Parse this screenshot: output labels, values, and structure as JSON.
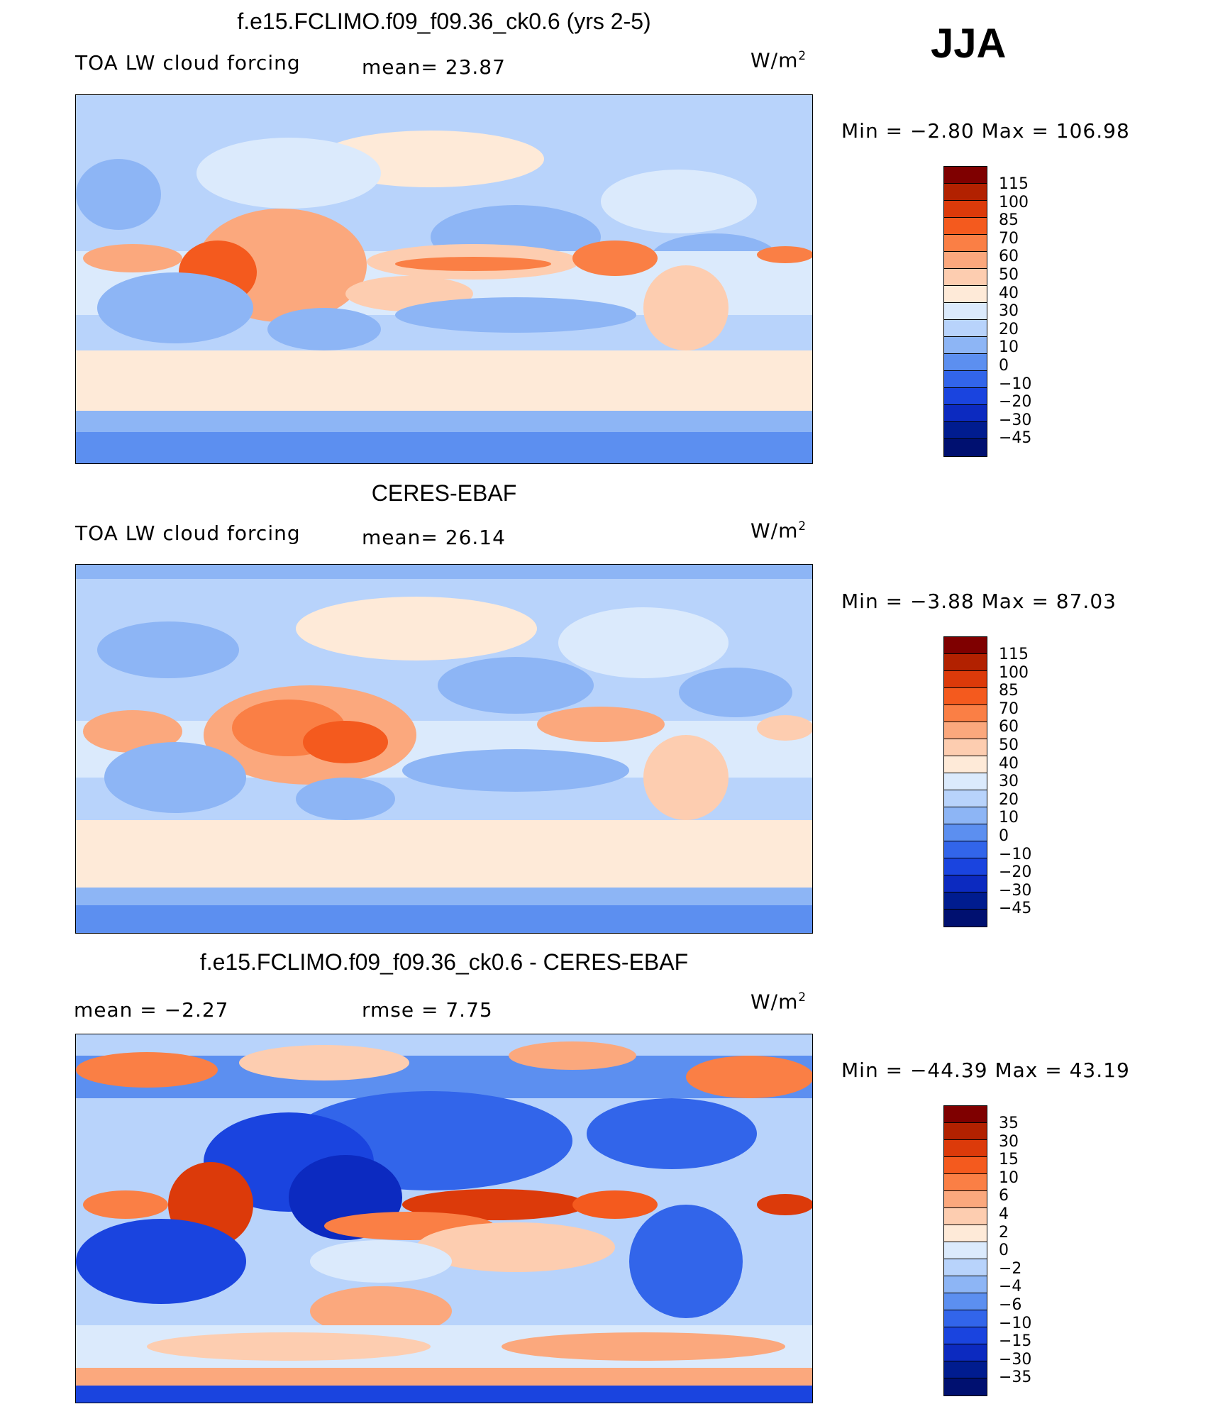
{
  "season": "JJA",
  "units": "W/m",
  "units_sup": "2",
  "panels": [
    {
      "title": "f.e15.FCLIMO.f09_f09.36_ck0.6 (yrs 2-5)",
      "left_label": "TOA LW cloud forcing",
      "mid_label": "mean=   23.87",
      "minmax": "Min  =    −2.80  Max  =  106.98",
      "colorbar": {
        "colors": [
          "#7f0000",
          "#b22100",
          "#dc3a0a",
          "#f45a1e",
          "#fa7f45",
          "#fba87d",
          "#fdcdb0",
          "#feead8",
          "#dbeafc",
          "#b8d3fb",
          "#8db5f5",
          "#5c8ff0",
          "#3265ea",
          "#1a44df",
          "#0c2ac0",
          "#001c8f",
          "#001070"
        ],
        "ticks": [
          "115",
          "100",
          "85",
          "70",
          "60",
          "50",
          "40",
          "30",
          "20",
          "10",
          "0",
          "−10",
          "−20",
          "−30",
          "−45"
        ]
      }
    },
    {
      "title": "CERES-EBAF",
      "left_label": "TOA LW cloud forcing",
      "mid_label": "mean=   26.14",
      "minmax": "Min  =    −3.88  Max  =    87.03",
      "colorbar": {
        "colors": [
          "#7f0000",
          "#b22100",
          "#dc3a0a",
          "#f45a1e",
          "#fa7f45",
          "#fba87d",
          "#fdcdb0",
          "#feead8",
          "#dbeafc",
          "#b8d3fb",
          "#8db5f5",
          "#5c8ff0",
          "#3265ea",
          "#1a44df",
          "#0c2ac0",
          "#001c8f",
          "#001070"
        ],
        "ticks": [
          "115",
          "100",
          "85",
          "70",
          "60",
          "50",
          "40",
          "30",
          "20",
          "10",
          "0",
          "−10",
          "−20",
          "−30",
          "−45"
        ]
      }
    },
    {
      "title": "f.e15.FCLIMO.f09_f09.36_ck0.6 - CERES-EBAF",
      "left_label": "mean  =    −2.27",
      "mid_label": "rmse  =     7.75",
      "minmax": "Min  = −44.39  Max  =   43.19",
      "colorbar": {
        "colors": [
          "#7f0000",
          "#b22100",
          "#dc3a0a",
          "#f45a1e",
          "#fa7f45",
          "#fba87d",
          "#fdcdb0",
          "#feead8",
          "#dbeafc",
          "#b8d3fb",
          "#8db5f5",
          "#5c8ff0",
          "#3265ea",
          "#1a44df",
          "#0c2ac0",
          "#001c8f",
          "#001070"
        ],
        "ticks": [
          "35",
          "30",
          "15",
          "10",
          "6",
          "4",
          "2",
          "0",
          "−2",
          "−4",
          "−6",
          "−10",
          "−15",
          "−30",
          "−35"
        ]
      }
    }
  ]
}
